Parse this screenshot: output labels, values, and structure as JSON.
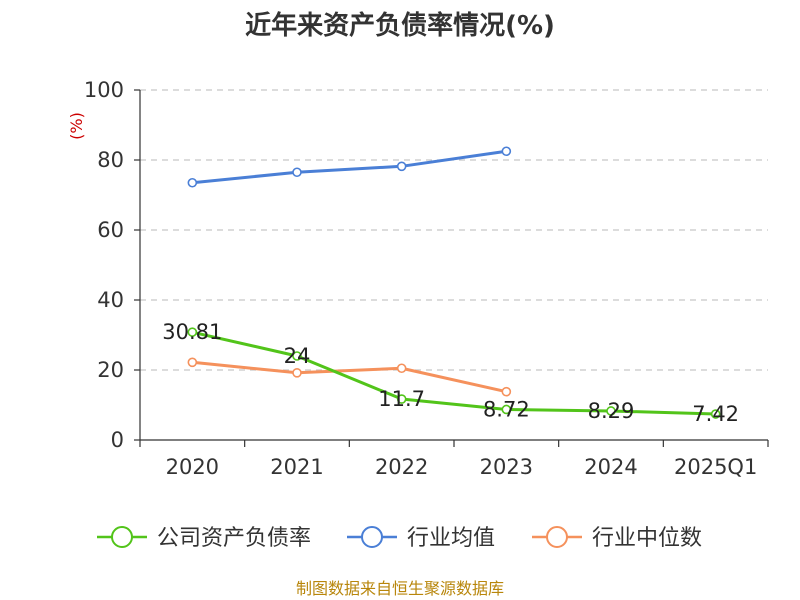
{
  "chart_data": {
    "type": "line",
    "title": "近年来资产负债率情况(%)",
    "xlabel": "",
    "ylabel": "(%)",
    "categories": [
      "2020",
      "2021",
      "2022",
      "2023",
      "2024",
      "2025Q1"
    ],
    "ylim": [
      0,
      100
    ],
    "yticks": [
      0,
      20,
      40,
      60,
      80,
      100
    ],
    "grid": true,
    "legend_position": "bottom",
    "series": [
      {
        "name": "公司资产负债率",
        "color": "#52c41a",
        "values": [
          30.81,
          24,
          11.7,
          8.72,
          8.29,
          7.42
        ],
        "labels": [
          "30.81",
          "24",
          "11.7",
          "8.72",
          "8.29",
          "7.42"
        ]
      },
      {
        "name": "行业均值",
        "color": "#4a7fd6",
        "values": [
          73.5,
          76.5,
          78.2,
          82.5,
          null,
          null
        ]
      },
      {
        "name": "行业中位数",
        "color": "#f5915c",
        "values": [
          22.2,
          19.2,
          20.5,
          13.8,
          null,
          null
        ]
      }
    ],
    "source_note": "制图数据来自恒生聚源数据库"
  }
}
